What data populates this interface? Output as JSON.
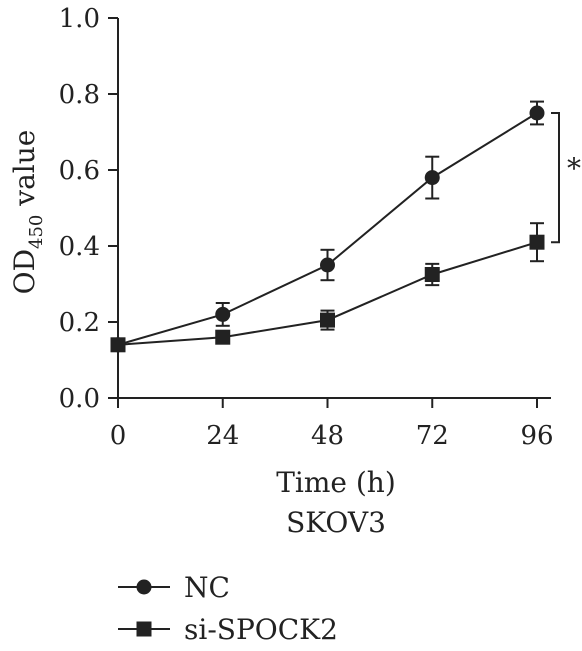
{
  "chart_data": {
    "type": "line",
    "x": [
      0,
      24,
      48,
      72,
      96
    ],
    "xticks": [
      "0",
      "24",
      "48",
      "72",
      "96"
    ],
    "yticks": [
      "0.0",
      "0.2",
      "0.4",
      "0.6",
      "0.8",
      "1.0"
    ],
    "ylim": [
      0,
      1.0
    ],
    "xlim": [
      0,
      96
    ],
    "ylabel_main": "OD",
    "ylabel_sub": "450",
    "ylabel_tail": " value",
    "xlabel": "Time (h)",
    "subtitle": "SKOV3",
    "significance": "*",
    "legend_position": "bottom-left",
    "series": [
      {
        "name": "NC",
        "marker": "circle",
        "color": "#222222",
        "values": [
          0.14,
          0.22,
          0.35,
          0.58,
          0.75
        ],
        "errors": [
          0.0,
          0.03,
          0.04,
          0.055,
          0.03
        ]
      },
      {
        "name": "si-SPOCK2",
        "marker": "square",
        "color": "#222222",
        "values": [
          0.14,
          0.16,
          0.205,
          0.325,
          0.41
        ],
        "errors": [
          0.0,
          0.01,
          0.025,
          0.028,
          0.05
        ]
      }
    ]
  }
}
